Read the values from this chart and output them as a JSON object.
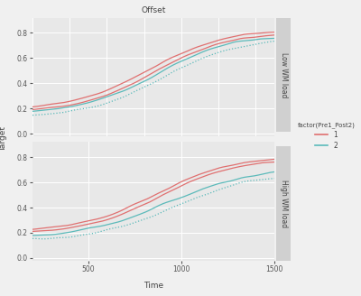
{
  "title": "Offset",
  "xlabel": "Time",
  "ylabel": "Target",
  "legend_title": "factor(Pre1_Post2)",
  "legend_labels": [
    "1",
    "2"
  ],
  "panel_labels": [
    "Low WM load",
    "High WM load"
  ],
  "color_1": "#E07070",
  "color_2": "#5BBABA",
  "fig_bg": "#F0F0F0",
  "plot_bg": "#E8E8E8",
  "strip_bg": "#D0D0D0",
  "grid_color": "#FFFFFF",
  "x_min": 200,
  "x_max": 1500,
  "y_min": -0.02,
  "y_max": 0.92,
  "x_ticks": [
    500,
    1000,
    1500
  ],
  "y_ticks": [
    0.0,
    0.2,
    0.4,
    0.6,
    0.8
  ]
}
